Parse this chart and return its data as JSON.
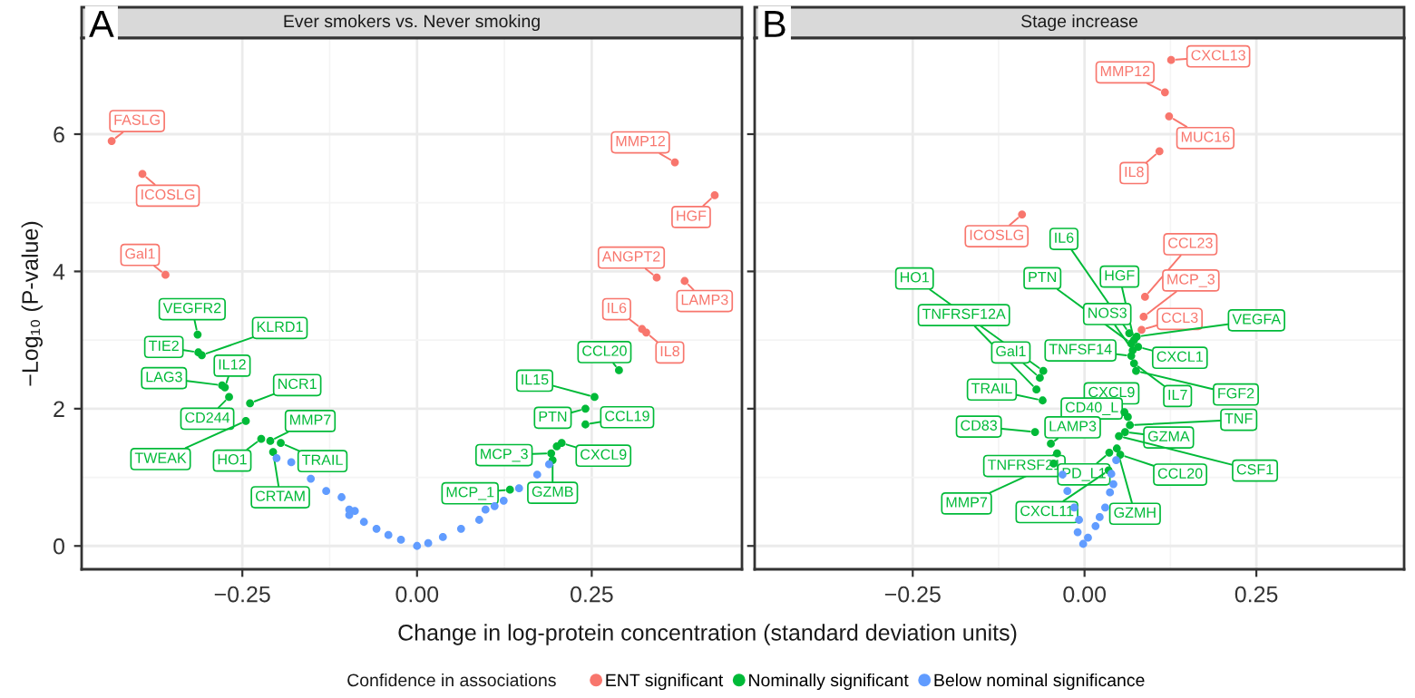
{
  "chart_data": [
    {
      "type": "scatter",
      "title": "Ever smokers vs. Never smoking",
      "xlabel": "Change in log-protein concentration (standard deviation units)",
      "ylabel": "−Log₁₀ (P-value)",
      "legend_title": "Confidence in associations",
      "legend": "bottom",
      "grid": true,
      "marker": "circle",
      "xlim": [
        -0.48,
        0.465
      ],
      "ylim": [
        -0.34,
        7.4
      ],
      "xticks": [
        {
          "value": -0.25,
          "label": "−0.25"
        },
        {
          "value": 0,
          "label": "0.00"
        },
        {
          "value": 0.25,
          "label": "0.25"
        }
      ],
      "yticks": [
        0,
        2,
        4,
        6
      ],
      "series": [
        {
          "name": "ENT significant",
          "color": "#f8766d",
          "x": [
            -0.437,
            -0.393,
            -0.36,
            0.369,
            0.426,
            0.343,
            0.383,
            0.322,
            0.328
          ],
          "values": [
            5.9,
            5.42,
            3.95,
            5.59,
            5.11,
            3.91,
            3.86,
            3.16,
            3.11
          ]
        },
        {
          "name": "Nominally significant",
          "color": "#00ba38",
          "x": [
            -0.314,
            -0.308,
            -0.313,
            -0.275,
            -0.279,
            -0.269,
            -0.239,
            -0.245,
            -0.223,
            -0.21,
            -0.195,
            -0.206,
            0.289,
            0.254,
            0.241,
            0.241,
            0.207,
            0.192,
            0.194,
            0.133,
            0.2
          ],
          "values": [
            3.08,
            2.78,
            2.82,
            2.31,
            2.34,
            2.17,
            2.08,
            1.82,
            1.56,
            1.53,
            1.5,
            1.37,
            2.56,
            2.17,
            2.0,
            1.77,
            1.5,
            1.35,
            1.25,
            0.82,
            1.45
          ]
        },
        {
          "name": "Below nominal significance",
          "color": "#619cff",
          "x": [
            -0.201,
            -0.18,
            -0.152,
            -0.13,
            -0.108,
            -0.097,
            -0.089,
            -0.097,
            -0.076,
            -0.058,
            -0.041,
            -0.023,
            0.0,
            0.016,
            0.037,
            0.063,
            0.089,
            0.098,
            0.111,
            0.124,
            0.146,
            0.172,
            0.189
          ],
          "values": [
            1.28,
            1.22,
            0.98,
            0.8,
            0.71,
            0.53,
            0.51,
            0.45,
            0.35,
            0.25,
            0.16,
            0.09,
            0.0,
            0.04,
            0.13,
            0.25,
            0.38,
            0.53,
            0.58,
            0.66,
            0.84,
            1.04,
            1.19
          ]
        }
      ],
      "annotations": [
        "A",
        {
          "text": "FASLG",
          "x": -0.437,
          "y": 5.9
        },
        {
          "text": "ICOSLG",
          "x": -0.393,
          "y": 5.42
        },
        {
          "text": "Gal1",
          "x": -0.36,
          "y": 3.95
        },
        {
          "text": "MMP12",
          "x": 0.369,
          "y": 5.59
        },
        {
          "text": "HGF",
          "x": 0.426,
          "y": 5.11
        },
        {
          "text": "ANGPT2",
          "x": 0.343,
          "y": 3.91
        },
        {
          "text": "LAMP3",
          "x": 0.383,
          "y": 3.86
        },
        {
          "text": "IL6",
          "x": 0.322,
          "y": 3.16
        },
        {
          "text": "IL8",
          "x": 0.328,
          "y": 3.11
        },
        {
          "text": "VEGFR2",
          "x": -0.314,
          "y": 3.08
        },
        {
          "text": "KLRD1",
          "x": -0.308,
          "y": 2.78
        },
        {
          "text": "TIE2",
          "x": -0.313,
          "y": 2.82
        },
        {
          "text": "IL12",
          "x": -0.275,
          "y": 2.31
        },
        {
          "text": "LAG3",
          "x": -0.279,
          "y": 2.34
        },
        {
          "text": "CD244",
          "x": -0.269,
          "y": 2.17
        },
        {
          "text": "NCR1",
          "x": -0.239,
          "y": 2.08
        },
        {
          "text": "TWEAK",
          "x": -0.245,
          "y": 1.82
        },
        {
          "text": "HO1",
          "x": -0.223,
          "y": 1.56
        },
        {
          "text": "MMP7",
          "x": -0.21,
          "y": 1.53
        },
        {
          "text": "TRAIL",
          "x": -0.195,
          "y": 1.5
        },
        {
          "text": "CRTAM",
          "x": -0.206,
          "y": 1.37
        },
        {
          "text": "CCL20",
          "x": 0.289,
          "y": 2.56
        },
        {
          "text": "IL15",
          "x": 0.254,
          "y": 2.17
        },
        {
          "text": "PTN",
          "x": 0.241,
          "y": 2.0
        },
        {
          "text": "CCL19",
          "x": 0.241,
          "y": 1.77
        },
        {
          "text": "CXCL9",
          "x": 0.207,
          "y": 1.5
        },
        {
          "text": "MCP_3",
          "x": 0.192,
          "y": 1.35
        },
        {
          "text": "GZMB",
          "x": 0.194,
          "y": 1.25
        },
        {
          "text": "MCP_1",
          "x": 0.133,
          "y": 0.82
        }
      ]
    },
    {
      "type": "scatter",
      "title": "Stage increase",
      "grid": true,
      "marker": "circle",
      "tick_labels": "x",
      "xlim": [
        -0.48,
        0.465
      ],
      "ylim": [
        -0.34,
        7.4
      ],
      "xticks": [
        {
          "value": -0.25,
          "label": "−0.25"
        },
        {
          "value": 0,
          "label": "0.00"
        },
        {
          "value": 0.25,
          "label": "0.25"
        }
      ],
      "yticks": [
        0,
        2,
        4,
        6
      ],
      "series": [
        {
          "color": "#f8766d",
          "x": [
            0.126,
            0.117,
            0.123,
            0.109,
            -0.091,
            0.088,
            0.086,
            0.083
          ],
          "values": [
            7.08,
            6.61,
            6.26,
            5.75,
            4.83,
            3.63,
            3.34,
            3.15
          ]
        },
        {
          "color": "#00ba38",
          "x": [
            0.076,
            0.065,
            -0.06,
            -0.07,
            -0.065,
            -0.061,
            0.068,
            0.072,
            0.07,
            0.068,
            0.078,
            0.072,
            0.075,
            0.063,
            0.058,
            -0.072,
            -0.049,
            0.066,
            0.059,
            -0.045,
            -0.04,
            0.05,
            0.052,
            0.036,
            0.035,
            0.047
          ],
          "values": [
            3.05,
            3.1,
            2.55,
            2.28,
            2.45,
            2.12,
            2.95,
            3.0,
            2.85,
            2.77,
            2.9,
            2.66,
            2.55,
            1.88,
            1.95,
            1.66,
            1.49,
            1.76,
            1.66,
            1.2,
            1.35,
            1.6,
            1.33,
            1.36,
            1.1,
            1.42
          ]
        },
        {
          "color": "#619cff",
          "x": [
            0.046,
            0.039,
            0.037,
            0.03,
            0.016,
            0.005,
            -0.002,
            -0.01,
            -0.008,
            -0.015,
            -0.032,
            -0.025,
            0.042,
            0.022
          ],
          "values": [
            1.25,
            1.05,
            0.78,
            0.56,
            0.29,
            0.12,
            0.03,
            0.2,
            0.38,
            0.56,
            1.04,
            0.8,
            0.9,
            0.42
          ]
        }
      ],
      "annotations": [
        "B",
        {
          "text": "CXCL13",
          "x": 0.126,
          "y": 7.08
        },
        {
          "text": "MMP12",
          "x": 0.117,
          "y": 6.61
        },
        {
          "text": "MUC16",
          "x": 0.123,
          "y": 6.26
        },
        {
          "text": "IL8",
          "x": 0.109,
          "y": 5.75
        },
        {
          "text": "ICOSLG",
          "x": -0.091,
          "y": 4.83
        },
        {
          "text": "CCL23",
          "x": 0.088,
          "y": 3.63
        },
        {
          "text": "MCP_3",
          "x": 0.086,
          "y": 3.34
        },
        {
          "text": "CCL3",
          "x": 0.083,
          "y": 3.15
        },
        {
          "text": "VEGFA",
          "x": 0.076,
          "y": 3.05
        },
        {
          "text": "IL6",
          "x": 0.065,
          "y": 3.1
        },
        {
          "text": "HO1",
          "x": -0.06,
          "y": 2.55
        },
        {
          "text": "TNFRSF12A",
          "x": -0.07,
          "y": 2.28
        },
        {
          "text": "Gal1",
          "x": -0.065,
          "y": 2.45
        },
        {
          "text": "TRAIL",
          "x": -0.061,
          "y": 2.12
        },
        {
          "text": "PTN",
          "x": 0.068,
          "y": 2.95
        },
        {
          "text": "HGF",
          "x": 0.072,
          "y": 3.0
        },
        {
          "text": "NOS3",
          "x": 0.07,
          "y": 2.85
        },
        {
          "text": "TNFSF14",
          "x": 0.068,
          "y": 2.77
        },
        {
          "text": "CXCL1",
          "x": 0.078,
          "y": 2.9
        },
        {
          "text": "IL7",
          "x": 0.072,
          "y": 2.66
        },
        {
          "text": "FGF2",
          "x": 0.075,
          "y": 2.55
        },
        {
          "text": "CXCL9",
          "x": 0.063,
          "y": 1.88
        },
        {
          "text": "CD40_L",
          "x": 0.058,
          "y": 1.95
        },
        {
          "text": "CD83",
          "x": -0.072,
          "y": 1.66
        },
        {
          "text": "LAMP3",
          "x": -0.049,
          "y": 1.49
        },
        {
          "text": "TNF",
          "x": 0.066,
          "y": 1.76
        },
        {
          "text": "GZMA",
          "x": 0.059,
          "y": 1.66
        },
        {
          "text": "MMP7",
          "x": -0.045,
          "y": 1.2
        },
        {
          "text": "TNFRSF21",
          "x": -0.04,
          "y": 1.35
        },
        {
          "text": "CSF1",
          "x": 0.05,
          "y": 1.6
        },
        {
          "text": "CCL20",
          "x": 0.052,
          "y": 1.33
        },
        {
          "text": "PD_L1",
          "x": 0.036,
          "y": 1.36
        },
        {
          "text": "CXCL11",
          "x": 0.035,
          "y": 1.1
        },
        {
          "text": "GZMH",
          "x": 0.047,
          "y": 1.42
        }
      ]
    }
  ]
}
